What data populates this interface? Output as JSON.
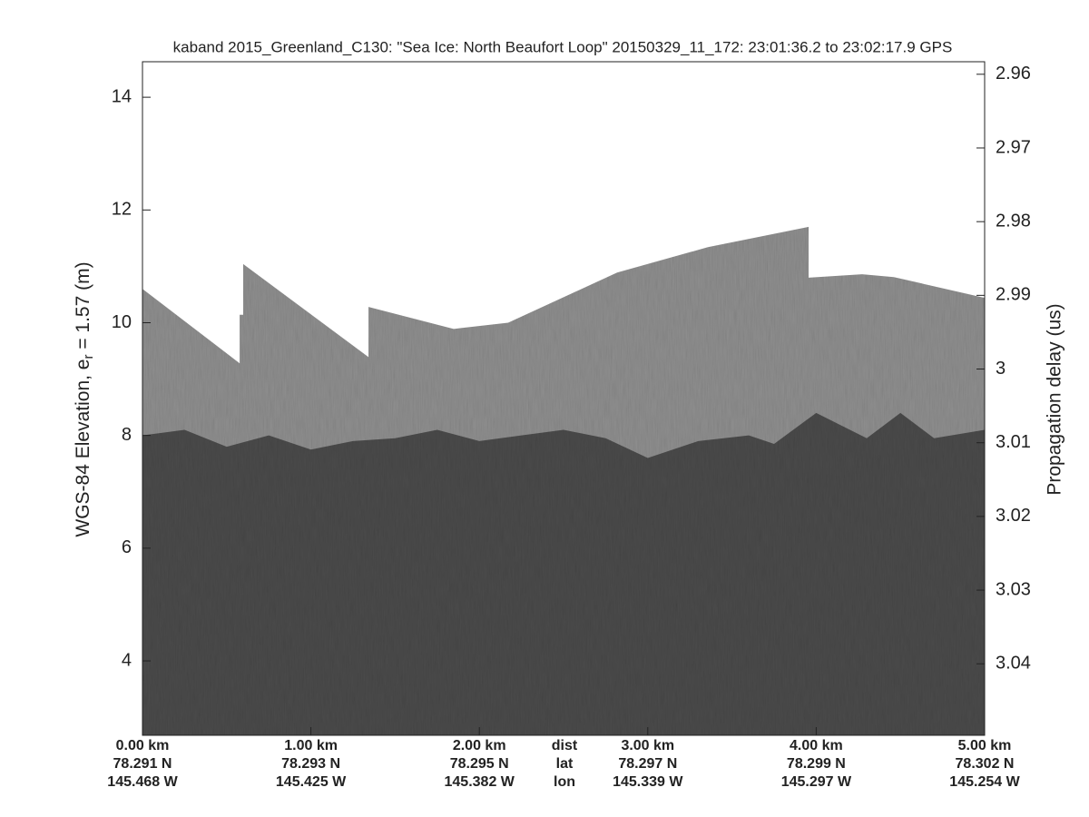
{
  "chart_data": {
    "type": "echogram",
    "title": "kaband 2015_Greenland_C130: \"Sea Ice: North Beaufort Loop\"  20150329_11_172: 23:01:36.2 to 23:02:17.9 GPS",
    "y_label": "WGS-84 Elevation, e",
    "y_label_sub": "r",
    "y_label_end": " = 1.57 (m)",
    "y2_label": "Propagation delay (us)",
    "xlim": [
      0,
      5
    ],
    "xticks": [
      {
        "value": 0,
        "label": "0.00 km"
      },
      {
        "value": 1,
        "label": "1.00 km"
      },
      {
        "value": 2,
        "label": "2.00 km"
      },
      {
        "value": 3,
        "label": "3.00 km"
      },
      {
        "value": 4,
        "label": "4.00 km"
      },
      {
        "value": 5,
        "label": "5.00 km"
      }
    ],
    "lat_labels": [
      "78.291 N",
      "78.293 N",
      "78.295 N",
      "78.297 N",
      "78.299 N",
      "78.302 N"
    ],
    "lon_labels": [
      "145.468 W",
      "145.425 W",
      "145.382 W",
      "145.339 W",
      "145.297 W",
      "145.254 W"
    ],
    "row_names": [
      "dist",
      "lat",
      "lon"
    ],
    "ylim": [
      2.68,
      14.63
    ],
    "yticks": [
      4,
      6,
      8,
      10,
      12,
      14
    ],
    "y2lim": [
      3.0497,
      2.9583
    ],
    "y2ticks": [
      2.96,
      2.97,
      2.98,
      2.99,
      3,
      3.01,
      3.02,
      3.03,
      3.04
    ],
    "series": [
      {
        "color": "#8e8e8e",
        "x": [
          0,
          0.577,
          0.577,
          0.598,
          0.598,
          1.342,
          1.342,
          1.848,
          2.171,
          2.818,
          3.357,
          3.955,
          3.955,
          4.273,
          4.461,
          5
        ],
        "values": [
          10.6,
          9.28,
          10.14,
          10.14,
          11.04,
          9.39,
          10.28,
          9.89,
          10.0,
          10.89,
          11.34,
          11.7,
          10.8,
          10.86,
          10.81,
          10.44
        ]
      },
      {
        "color": "#4a4a4a",
        "x": [
          0,
          0.25,
          0.5,
          0.75,
          1,
          1.25,
          1.5,
          1.75,
          2,
          2.25,
          2.5,
          2.75,
          3,
          3.3,
          3.6,
          3.75,
          4,
          4.3,
          4.5,
          4.7,
          5
        ],
        "values": [
          8.0,
          8.1,
          7.8,
          8.0,
          7.75,
          7.9,
          7.95,
          8.1,
          7.9,
          8.0,
          8.1,
          7.95,
          7.6,
          7.9,
          8.0,
          7.85,
          8.4,
          7.95,
          8.4,
          7.95,
          8.1
        ]
      }
    ]
  }
}
